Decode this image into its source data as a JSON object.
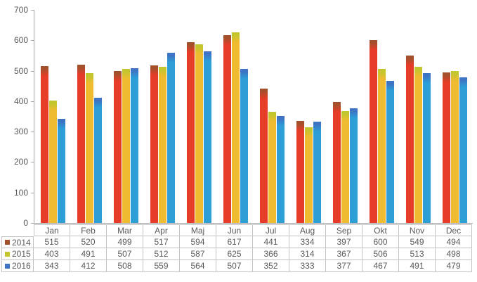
{
  "chart_data": {
    "type": "bar",
    "title": "",
    "xlabel": "",
    "ylabel": "",
    "categories": [
      "Jan",
      "Feb",
      "Mar",
      "Apr",
      "Maj",
      "Jun",
      "Jul",
      "Aug",
      "Sep",
      "Okt",
      "Nov",
      "Dec"
    ],
    "series": [
      {
        "name": "2014",
        "color": "#E63C28",
        "cap_color": "#A5502C",
        "marker_color": "#A5502C",
        "values": [
          515,
          520,
          499,
          517,
          594,
          617,
          441,
          334,
          397,
          600,
          549,
          494
        ]
      },
      {
        "name": "2015",
        "color": "#EFBB2F",
        "cap_color": "#C3C62F",
        "marker_color": "#C3C62F",
        "values": [
          403,
          491,
          507,
          512,
          587,
          625,
          366,
          314,
          367,
          506,
          513,
          498
        ]
      },
      {
        "name": "2016",
        "color": "#2D9FD6",
        "cap_color": "#3D74C4",
        "marker_color": "#3D74C4",
        "values": [
          343,
          412,
          508,
          559,
          564,
          507,
          352,
          333,
          377,
          467,
          491,
          479
        ]
      }
    ],
    "ylim": [
      0,
      700
    ],
    "yticks": [
      0,
      100,
      200,
      300,
      400,
      500,
      600,
      700
    ],
    "grid": false,
    "legend_position": "data-table-left"
  },
  "colors": {
    "background": "#FFFFFF",
    "axis": "#A6A6A6",
    "text": "#595959",
    "table_border": "#C3C3C3"
  }
}
